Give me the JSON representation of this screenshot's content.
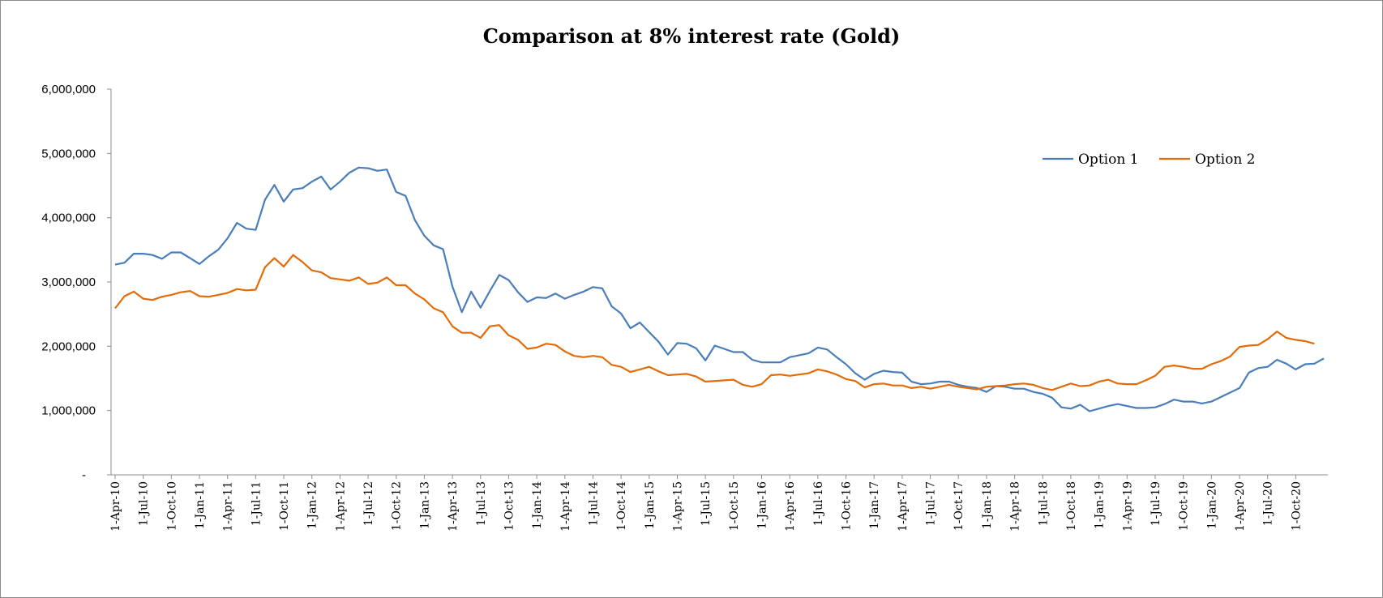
{
  "chart_data": {
    "type": "line",
    "title": "Comparison at 8% interest rate  (Gold)",
    "xlabel": "",
    "ylabel": "",
    "ylim": [
      0,
      6000000
    ],
    "y_ticks": [
      0,
      1000000,
      2000000,
      3000000,
      4000000,
      5000000,
      6000000
    ],
    "y_tick_labels": [
      "-",
      "1,000,000",
      "2,000,000",
      "3,000,000",
      "4,000,000",
      "5,000,000",
      "6,000,000"
    ],
    "x_tick_labels": [
      "1-Apr-10",
      "1-Jul-10",
      "1-Oct-10",
      "1-Jan-11",
      "1-Apr-11",
      "1-Jul-11",
      "1-Oct-11",
      "1-Jan-12",
      "1-Apr-12",
      "1-Jul-12",
      "1-Oct-12",
      "1-Jan-13",
      "1-Apr-13",
      "1-Jul-13",
      "1-Oct-13",
      "1-Jan-14",
      "1-Apr-14",
      "1-Jul-14",
      "1-Oct-14",
      "1-Jan-15",
      "1-Apr-15",
      "1-Jul-15",
      "1-Oct-15",
      "1-Jan-16",
      "1-Apr-16",
      "1-Jul-16",
      "1-Oct-16",
      "1-Jan-17",
      "1-Apr-17",
      "1-Jul-17",
      "1-Oct-17",
      "1-Jan-18",
      "1-Apr-18",
      "1-Jul-18",
      "1-Oct-18",
      "1-Jan-19",
      "1-Apr-19",
      "1-Jul-19",
      "1-Oct-19",
      "1-Jan-20",
      "1-Apr-20",
      "1-Jul-20",
      "1-Oct-20"
    ],
    "x_start": "1-Apr-10",
    "x_step": "1 month",
    "grid": false,
    "legend_position": "top-right",
    "series": [
      {
        "name": "Option 1",
        "color": "#4a7ebb",
        "values": [
          3270000,
          3300000,
          3440000,
          3440000,
          3420000,
          3360000,
          3460000,
          3460000,
          3370000,
          3280000,
          3400000,
          3500000,
          3680000,
          3920000,
          3830000,
          3810000,
          4280000,
          4510000,
          4250000,
          4440000,
          4460000,
          4560000,
          4640000,
          4440000,
          4560000,
          4700000,
          4780000,
          4770000,
          4730000,
          4750000,
          4400000,
          4340000,
          3960000,
          3720000,
          3570000,
          3510000,
          2930000,
          2530000,
          2850000,
          2600000,
          2860000,
          3110000,
          3030000,
          2840000,
          2690000,
          2760000,
          2750000,
          2820000,
          2740000,
          2800000,
          2850000,
          2920000,
          2900000,
          2620000,
          2510000,
          2280000,
          2370000,
          2220000,
          2070000,
          1870000,
          2050000,
          2040000,
          1970000,
          1780000,
          2010000,
          1960000,
          1910000,
          1910000,
          1790000,
          1750000,
          1750000,
          1750000,
          1830000,
          1860000,
          1890000,
          1980000,
          1950000,
          1830000,
          1720000,
          1580000,
          1480000,
          1570000,
          1620000,
          1600000,
          1590000,
          1450000,
          1410000,
          1420000,
          1450000,
          1450000,
          1400000,
          1370000,
          1350000,
          1290000,
          1380000,
          1370000,
          1340000,
          1340000,
          1290000,
          1260000,
          1200000,
          1050000,
          1030000,
          1090000,
          990000,
          1030000,
          1070000,
          1100000,
          1070000,
          1040000,
          1040000,
          1050000,
          1100000,
          1170000,
          1140000,
          1140000,
          1110000,
          1140000,
          1210000,
          1280000,
          1350000,
          1590000,
          1660000,
          1680000,
          1790000,
          1730000,
          1640000,
          1720000,
          1730000,
          1810000
        ]
      },
      {
        "name": "Option 2",
        "color": "#e36c09",
        "values": [
          2590000,
          2780000,
          2850000,
          2740000,
          2720000,
          2770000,
          2800000,
          2840000,
          2860000,
          2780000,
          2770000,
          2800000,
          2830000,
          2890000,
          2870000,
          2880000,
          3230000,
          3370000,
          3240000,
          3420000,
          3310000,
          3180000,
          3150000,
          3060000,
          3040000,
          3020000,
          3070000,
          2970000,
          2990000,
          3070000,
          2950000,
          2950000,
          2820000,
          2730000,
          2590000,
          2530000,
          2310000,
          2210000,
          2210000,
          2130000,
          2310000,
          2330000,
          2170000,
          2100000,
          1960000,
          1980000,
          2040000,
          2020000,
          1920000,
          1850000,
          1830000,
          1850000,
          1830000,
          1710000,
          1680000,
          1600000,
          1640000,
          1680000,
          1610000,
          1550000,
          1560000,
          1570000,
          1530000,
          1450000,
          1460000,
          1470000,
          1480000,
          1400000,
          1370000,
          1410000,
          1550000,
          1560000,
          1540000,
          1560000,
          1580000,
          1640000,
          1610000,
          1560000,
          1490000,
          1460000,
          1360000,
          1410000,
          1420000,
          1390000,
          1390000,
          1350000,
          1370000,
          1340000,
          1370000,
          1400000,
          1370000,
          1350000,
          1330000,
          1370000,
          1380000,
          1390000,
          1410000,
          1420000,
          1400000,
          1350000,
          1320000,
          1370000,
          1420000,
          1380000,
          1390000,
          1450000,
          1480000,
          1420000,
          1410000,
          1410000,
          1470000,
          1540000,
          1680000,
          1700000,
          1680000,
          1650000,
          1650000,
          1720000,
          1770000,
          1840000,
          1990000,
          2010000,
          2020000,
          2110000,
          2230000,
          2130000,
          2100000,
          2080000,
          2040000
        ]
      }
    ]
  }
}
